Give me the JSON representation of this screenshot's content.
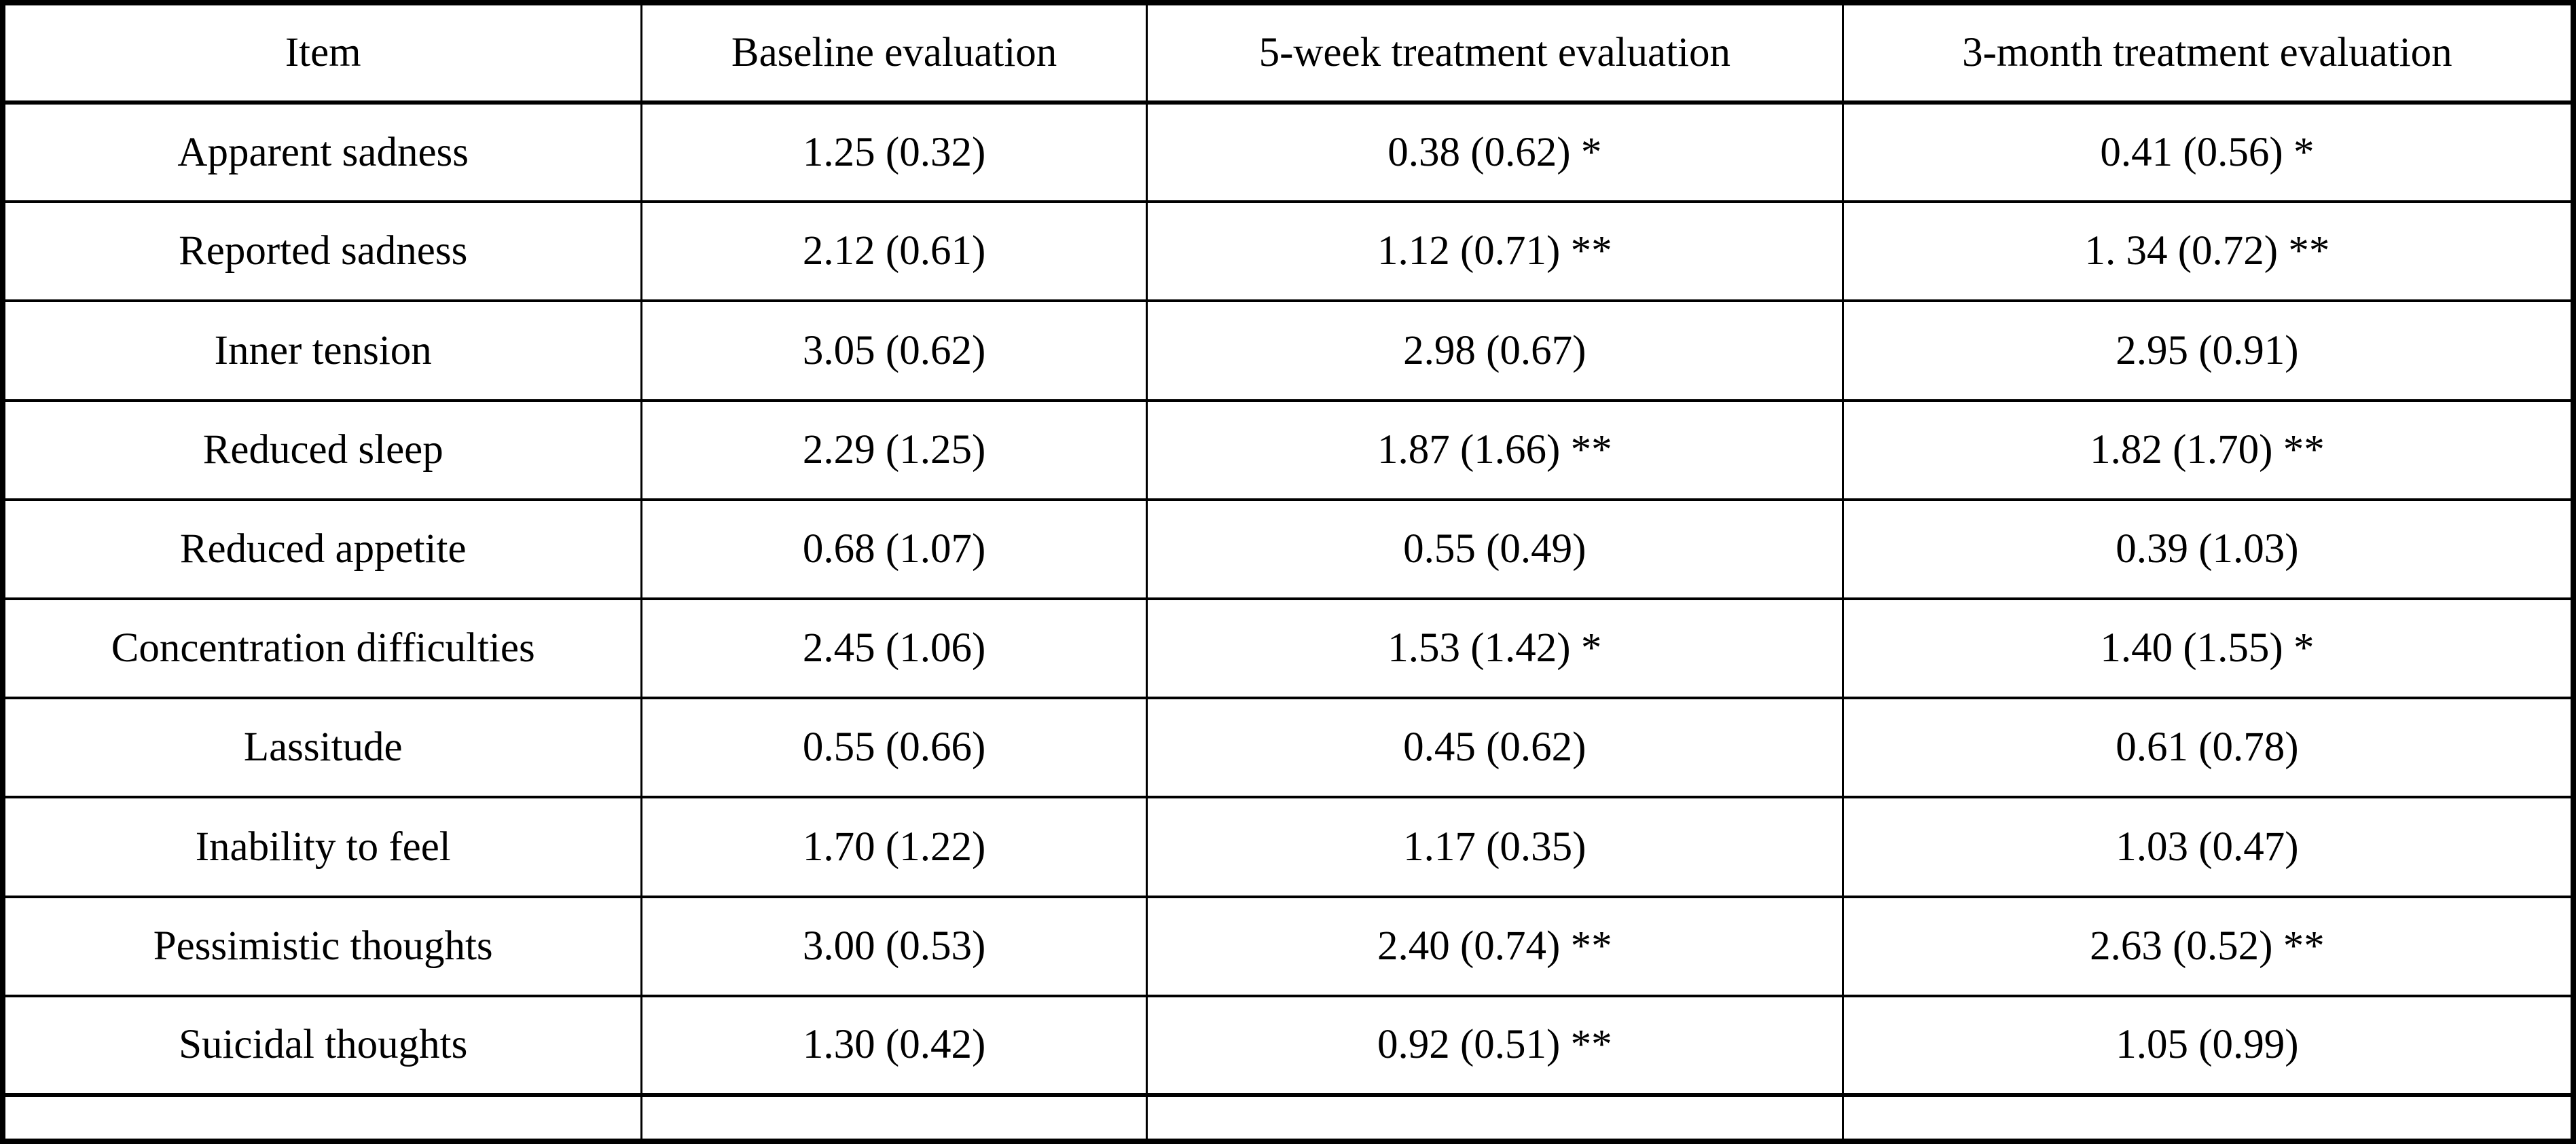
{
  "colors": {
    "background": "#ffffff",
    "border": "#000000",
    "text": "#000000"
  },
  "table": {
    "columns": [
      "Item",
      "Baseline evaluation",
      "5-week treatment evaluation",
      "3-month treatment evaluation"
    ],
    "rows": [
      {
        "cells": [
          "Apparent sadness",
          "1.25 (0.32)",
          "0.38 (0.62) *",
          "0.41 (0.56) *"
        ]
      },
      {
        "cells": [
          "Reported sadness",
          "2.12 (0.61)",
          "1.12 (0.71) **",
          "1. 34 (0.72) **"
        ]
      },
      {
        "cells": [
          "Inner tension",
          "3.05 (0.62)",
          "2.98 (0.67)",
          "2.95 (0.91)"
        ]
      },
      {
        "cells": [
          "Reduced sleep",
          "2.29 (1.25)",
          "1.87 (1.66) **",
          "1.82 (1.70) **"
        ]
      },
      {
        "cells": [
          "Reduced appetite",
          "0.68 (1.07)",
          "0.55 (0.49)",
          "0.39 (1.03)"
        ]
      },
      {
        "cells": [
          "Concentration difficulties",
          "2.45 (1.06)",
          "1.53 (1.42) *",
          "1.40 (1.55) *"
        ]
      },
      {
        "cells": [
          "Lassitude",
          "0.55 (0.66)",
          "0.45 (0.62)",
          "0.61 (0.78)"
        ]
      },
      {
        "cells": [
          "Inability to feel",
          "1.70 (1.22)",
          "1.17 (0.35)",
          "1.03 (0.47)"
        ]
      },
      {
        "cells": [
          "Pessimistic thoughts",
          "3.00 (0.53)",
          "2.40 (0.74) **",
          "2.63 (0.52) **"
        ]
      },
      {
        "cells": [
          "Suicidal thoughts",
          "1.30 (0.42)",
          "0.92 (0.51) **",
          "1.05 (0.99)"
        ]
      },
      {
        "cells": [
          "",
          "",
          "",
          ""
        ]
      }
    ]
  }
}
